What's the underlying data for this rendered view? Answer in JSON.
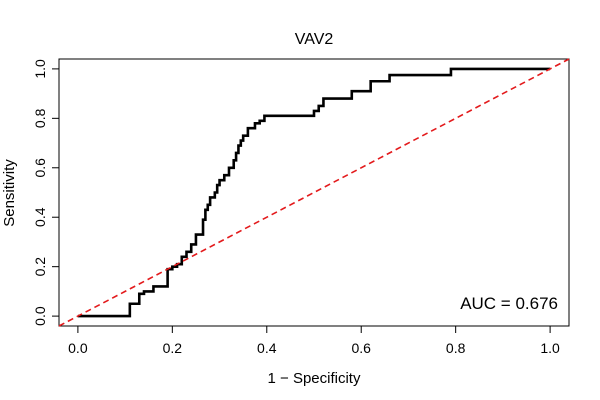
{
  "chart_data": {
    "type": "line",
    "title": "VAV2",
    "xlabel": "1 − Specificity",
    "ylabel": "Sensitivity",
    "xlim": [
      -0.04,
      1.04
    ],
    "ylim": [
      -0.04,
      1.04
    ],
    "xticks": [
      "0.0",
      "0.2",
      "0.4",
      "0.6",
      "0.8",
      "1.0"
    ],
    "yticks": [
      "0.0",
      "0.2",
      "0.4",
      "0.6",
      "0.8",
      "1.0"
    ],
    "grid": false,
    "annotation": "AUC = 0.676",
    "colors": {
      "roc": "#000000",
      "reference": "#e31a1c"
    },
    "series": [
      {
        "style": "solid",
        "x": [
          0.0,
          0.11,
          0.11,
          0.13,
          0.13,
          0.14,
          0.14,
          0.16,
          0.16,
          0.19,
          0.19,
          0.2,
          0.2,
          0.21,
          0.21,
          0.22,
          0.22,
          0.23,
          0.23,
          0.24,
          0.24,
          0.25,
          0.25,
          0.265,
          0.265,
          0.27,
          0.27,
          0.275,
          0.275,
          0.28,
          0.28,
          0.29,
          0.29,
          0.295,
          0.295,
          0.3,
          0.3,
          0.31,
          0.31,
          0.32,
          0.32,
          0.33,
          0.33,
          0.335,
          0.335,
          0.34,
          0.34,
          0.345,
          0.345,
          0.35,
          0.35,
          0.36,
          0.36,
          0.375,
          0.375,
          0.385,
          0.385,
          0.395,
          0.395,
          0.5,
          0.5,
          0.51,
          0.51,
          0.52,
          0.52,
          0.58,
          0.58,
          0.62,
          0.62,
          0.66,
          0.66,
          0.79,
          0.79,
          1.0
        ],
        "y": [
          0.0,
          0.0,
          0.05,
          0.05,
          0.09,
          0.09,
          0.1,
          0.1,
          0.12,
          0.12,
          0.19,
          0.19,
          0.2,
          0.2,
          0.21,
          0.21,
          0.24,
          0.24,
          0.26,
          0.26,
          0.29,
          0.29,
          0.33,
          0.33,
          0.39,
          0.39,
          0.43,
          0.43,
          0.45,
          0.45,
          0.48,
          0.48,
          0.5,
          0.5,
          0.53,
          0.53,
          0.55,
          0.55,
          0.57,
          0.57,
          0.6,
          0.6,
          0.63,
          0.63,
          0.66,
          0.66,
          0.69,
          0.69,
          0.71,
          0.71,
          0.73,
          0.73,
          0.76,
          0.76,
          0.78,
          0.78,
          0.79,
          0.79,
          0.81,
          0.81,
          0.83,
          0.83,
          0.85,
          0.85,
          0.88,
          0.88,
          0.91,
          0.91,
          0.95,
          0.95,
          0.975,
          0.975,
          1.0,
          1.0
        ]
      },
      {
        "style": "dashed",
        "x": [
          -0.04,
          1.04
        ],
        "y": [
          -0.04,
          1.04
        ]
      }
    ]
  }
}
